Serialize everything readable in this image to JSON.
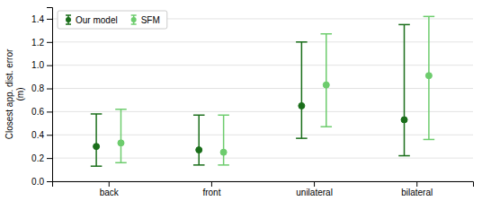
{
  "chart_data": {
    "type": "errorbar",
    "ylabel": "Closest app. dist. error\n(m)",
    "categories": [
      "back",
      "front",
      "unilateral",
      "bilateral"
    ],
    "series": [
      {
        "name": "Our model",
        "color": "#1a6e1a",
        "marker": "circle",
        "values": [
          0.3,
          0.27,
          0.65,
          0.53
        ],
        "lower": [
          0.13,
          0.14,
          0.37,
          0.22
        ],
        "upper": [
          0.58,
          0.57,
          1.2,
          1.35
        ]
      },
      {
        "name": "SFM",
        "color": "#6dcc6d",
        "marker": "circle",
        "values": [
          0.33,
          0.25,
          0.83,
          0.91
        ],
        "lower": [
          0.16,
          0.14,
          0.47,
          0.36
        ],
        "upper": [
          0.62,
          0.57,
          1.27,
          1.42
        ]
      }
    ],
    "ylim": [
      0.0,
      1.5
    ],
    "yticks": [
      {
        "value": 0.0,
        "label": "0.0"
      },
      0.2,
      0.4,
      0.6,
      0.8,
      {
        "value": 1.0,
        "label": "1.0"
      },
      1.2,
      1.4
    ],
    "grid": true,
    "legend": "upper left"
  }
}
